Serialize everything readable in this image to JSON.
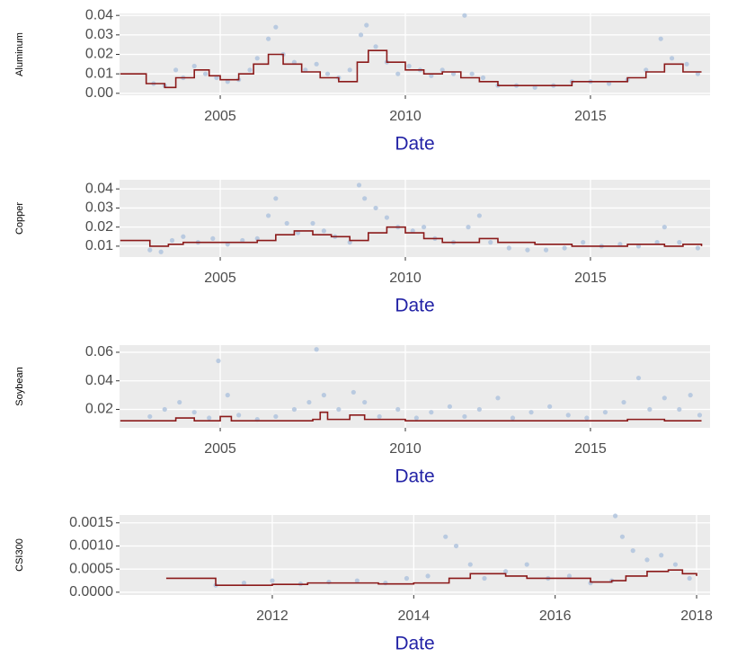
{
  "chart_data": [
    {
      "type": "scatter",
      "ylabel": "Aluminum",
      "xlabel": "Date",
      "grid": true,
      "xlim": [
        2002.28,
        2018.23
      ],
      "xticks": [
        2005,
        2010,
        2015
      ],
      "ylim": [
        -0.001,
        0.041
      ],
      "yticks": [
        {
          "value": 0,
          "label": "0.00"
        },
        0.01,
        0.02,
        0.03,
        0.04
      ],
      "series": [
        {
          "type": "scatter",
          "color": "#b0c4de",
          "x": [
            2003.2,
            2003.5,
            2003.8,
            2004.0,
            2004.3,
            2004.6,
            2004.9,
            2005.2,
            2005.5,
            2005.8,
            2006.0,
            2006.3,
            2006.5,
            2006.7,
            2007.0,
            2007.3,
            2007.6,
            2007.9,
            2008.2,
            2008.5,
            2008.8,
            2008.95,
            2009.2,
            2009.5,
            2009.8,
            2010.1,
            2010.4,
            2010.7,
            2011.0,
            2011.3,
            2011.6,
            2011.8,
            2012.1,
            2012.5,
            2013.0,
            2013.5,
            2014.0,
            2014.5,
            2015.0,
            2015.5,
            2016.0,
            2016.5,
            2016.9,
            2017.2,
            2017.6,
            2017.9
          ],
          "values": [
            0.005,
            0.004,
            0.012,
            0.008,
            0.014,
            0.01,
            0.008,
            0.006,
            0.007,
            0.012,
            0.018,
            0.028,
            0.034,
            0.02,
            0.016,
            0.012,
            0.015,
            0.01,
            0.008,
            0.012,
            0.03,
            0.035,
            0.024,
            0.016,
            0.01,
            0.014,
            0.012,
            0.009,
            0.012,
            0.01,
            0.04,
            0.01,
            0.008,
            0.004,
            0.004,
            0.003,
            0.004,
            0.006,
            0.006,
            0.005,
            0.007,
            0.012,
            0.028,
            0.018,
            0.015,
            0.01
          ]
        },
        {
          "type": "step",
          "color": "#8b1a1a",
          "x": [
            2002.3,
            2003.0,
            2003.5,
            2003.8,
            2004.3,
            2004.7,
            2005.0,
            2005.5,
            2005.9,
            2006.3,
            2006.7,
            2007.2,
            2007.7,
            2008.2,
            2008.7,
            2009.0,
            2009.5,
            2010.0,
            2010.5,
            2011.0,
            2011.5,
            2012.0,
            2012.5,
            2014.0,
            2014.5,
            2015.5,
            2016.0,
            2016.5,
            2017.0,
            2017.5,
            2018.0
          ],
          "values": [
            0.01,
            0.005,
            0.003,
            0.008,
            0.012,
            0.009,
            0.007,
            0.01,
            0.015,
            0.02,
            0.015,
            0.011,
            0.008,
            0.006,
            0.016,
            0.022,
            0.016,
            0.012,
            0.01,
            0.011,
            0.008,
            0.006,
            0.004,
            0.004,
            0.006,
            0.006,
            0.008,
            0.011,
            0.015,
            0.011,
            0.011
          ]
        }
      ]
    },
    {
      "type": "scatter",
      "ylabel": "Copper",
      "xlabel": "Date",
      "grid": true,
      "xlim": [
        2002.28,
        2018.23
      ],
      "xticks": [
        2005,
        2010,
        2015
      ],
      "ylim": [
        0.0043,
        0.0448
      ],
      "yticks": [
        0.01,
        0.02,
        0.03,
        0.04
      ],
      "series": [
        {
          "type": "scatter",
          "color": "#b0c4de",
          "x": [
            2003.1,
            2003.4,
            2003.7,
            2004.0,
            2004.4,
            2004.8,
            2005.2,
            2005.6,
            2006.0,
            2006.3,
            2006.5,
            2006.8,
            2007.1,
            2007.5,
            2007.8,
            2008.1,
            2008.5,
            2008.75,
            2008.9,
            2009.2,
            2009.5,
            2009.8,
            2010.2,
            2010.5,
            2010.8,
            2011.3,
            2011.7,
            2012.0,
            2012.3,
            2012.8,
            2013.3,
            2013.8,
            2014.3,
            2014.8,
            2015.3,
            2015.8,
            2016.3,
            2016.8,
            2017.0,
            2017.4,
            2017.9
          ],
          "values": [
            0.008,
            0.007,
            0.013,
            0.015,
            0.012,
            0.014,
            0.011,
            0.013,
            0.014,
            0.026,
            0.035,
            0.022,
            0.017,
            0.022,
            0.018,
            0.015,
            0.012,
            0.042,
            0.035,
            0.03,
            0.025,
            0.02,
            0.018,
            0.02,
            0.014,
            0.012,
            0.02,
            0.026,
            0.012,
            0.009,
            0.008,
            0.008,
            0.009,
            0.012,
            0.01,
            0.011,
            0.01,
            0.012,
            0.02,
            0.012,
            0.009
          ]
        },
        {
          "type": "step",
          "color": "#8b1a1a",
          "x": [
            2002.3,
            2003.1,
            2003.6,
            2004.0,
            2005.0,
            2006.0,
            2006.5,
            2007.0,
            2007.5,
            2008.0,
            2008.5,
            2009.0,
            2009.5,
            2010.0,
            2010.5,
            2011.0,
            2012.0,
            2012.5,
            2013.5,
            2014.5,
            2016.0,
            2017.0,
            2017.5,
            2018.0
          ],
          "values": [
            0.013,
            0.01,
            0.011,
            0.012,
            0.012,
            0.013,
            0.016,
            0.018,
            0.016,
            0.015,
            0.013,
            0.017,
            0.02,
            0.017,
            0.014,
            0.012,
            0.014,
            0.012,
            0.011,
            0.01,
            0.011,
            0.01,
            0.011,
            0.01
          ]
        }
      ]
    },
    {
      "type": "scatter",
      "ylabel": "Soybean",
      "xlabel": "Date",
      "grid": true,
      "xlim": [
        2002.28,
        2018.23
      ],
      "xticks": [
        2005,
        2010,
        2015
      ],
      "ylim": [
        0.0071,
        0.065
      ],
      "yticks": [
        0.02,
        0.04,
        0.06
      ],
      "series": [
        {
          "type": "scatter",
          "color": "#b0c4de",
          "x": [
            2003.1,
            2003.5,
            2003.9,
            2004.3,
            2004.7,
            2004.95,
            2005.2,
            2005.5,
            2006.0,
            2006.5,
            2007.0,
            2007.4,
            2007.6,
            2007.8,
            2008.2,
            2008.6,
            2008.9,
            2009.3,
            2009.8,
            2010.3,
            2010.7,
            2011.2,
            2011.6,
            2012.0,
            2012.5,
            2012.9,
            2013.4,
            2013.9,
            2014.4,
            2014.9,
            2015.4,
            2015.9,
            2016.3,
            2016.6,
            2017.0,
            2017.4,
            2017.7,
            2017.95
          ],
          "values": [
            0.015,
            0.02,
            0.025,
            0.018,
            0.014,
            0.054,
            0.03,
            0.016,
            0.013,
            0.015,
            0.02,
            0.025,
            0.062,
            0.03,
            0.02,
            0.032,
            0.025,
            0.015,
            0.02,
            0.014,
            0.018,
            0.022,
            0.015,
            0.02,
            0.028,
            0.014,
            0.018,
            0.022,
            0.016,
            0.014,
            0.018,
            0.025,
            0.042,
            0.02,
            0.028,
            0.02,
            0.03,
            0.016
          ]
        },
        {
          "type": "step",
          "color": "#8b1a1a",
          "x": [
            2002.3,
            2003.8,
            2004.3,
            2005.0,
            2005.3,
            2007.5,
            2007.7,
            2007.9,
            2008.5,
            2008.9,
            2010.0,
            2016.0,
            2017.0,
            2018.0
          ],
          "values": [
            0.012,
            0.014,
            0.012,
            0.015,
            0.012,
            0.013,
            0.018,
            0.013,
            0.016,
            0.013,
            0.012,
            0.013,
            0.012,
            0.012
          ]
        }
      ]
    },
    {
      "type": "scatter",
      "ylabel": "CSI300",
      "xlabel": "Date",
      "grid": true,
      "xlim": [
        2009.84,
        2018.19
      ],
      "xticks": [
        2012,
        2014,
        2016,
        2018
      ],
      "ylim": [
        -6e-05,
        0.00167
      ],
      "yticks": [
        {
          "value": 0,
          "label": "0.0000"
        },
        0.0005,
        {
          "value": 0.001,
          "label": "0.0010"
        },
        0.0015
      ],
      "series": [
        {
          "type": "scatter",
          "color": "#b0c4de",
          "x": [
            2011.2,
            2011.6,
            2012.0,
            2012.4,
            2012.8,
            2013.2,
            2013.6,
            2013.9,
            2014.2,
            2014.45,
            2014.6,
            2014.8,
            2015.0,
            2015.3,
            2015.6,
            2015.9,
            2016.2,
            2016.5,
            2016.8,
            2016.85,
            2016.95,
            2017.1,
            2017.3,
            2017.5,
            2017.7,
            2017.9
          ],
          "values": [
            0.00015,
            0.0002,
            0.00025,
            0.00018,
            0.00022,
            0.00025,
            0.0002,
            0.0003,
            0.00035,
            0.0012,
            0.001,
            0.0006,
            0.0003,
            0.00045,
            0.0006,
            0.0003,
            0.00035,
            0.0002,
            0.00025,
            0.00165,
            0.0012,
            0.0009,
            0.0007,
            0.0008,
            0.0006,
            0.0003
          ]
        },
        {
          "type": "step",
          "color": "#8b1a1a",
          "x": [
            2010.5,
            2011.2,
            2012.0,
            2012.5,
            2013.5,
            2014.0,
            2014.5,
            2014.8,
            2015.3,
            2015.6,
            2016.5,
            2016.8,
            2017.0,
            2017.3,
            2017.6,
            2017.8,
            2018.0
          ],
          "values": [
            0.0003,
            0.00015,
            0.00017,
            0.0002,
            0.00018,
            0.0002,
            0.0003,
            0.0004,
            0.00035,
            0.0003,
            0.00022,
            0.00025,
            0.00035,
            0.00045,
            0.00048,
            0.0004,
            0.00035
          ]
        }
      ]
    }
  ]
}
